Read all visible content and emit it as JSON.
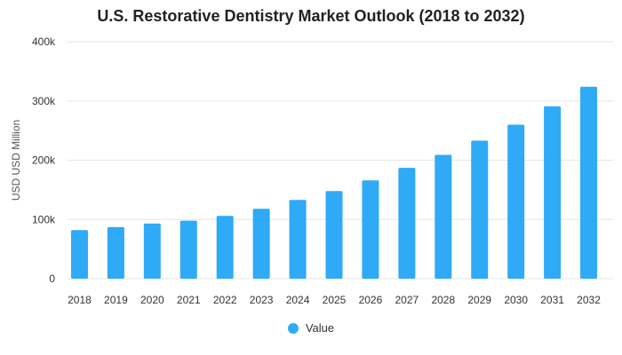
{
  "chart_data": {
    "type": "bar",
    "title": "U.S. Restorative Dentistry Market Outlook (2018 to 2032)",
    "xlabel": "",
    "ylabel": "USD USD Million",
    "categories": [
      "2018",
      "2019",
      "2020",
      "2021",
      "2022",
      "2023",
      "2024",
      "2025",
      "2026",
      "2027",
      "2028",
      "2029",
      "2030",
      "2031",
      "2032"
    ],
    "series": [
      {
        "name": "Value",
        "values": [
          82000,
          87000,
          93000,
          98000,
          106000,
          118000,
          133000,
          148000,
          166000,
          187000,
          209000,
          233000,
          260000,
          291000,
          324000
        ],
        "color": "#2eaaf7"
      }
    ],
    "ylim": [
      0,
      400000
    ],
    "yticks": [
      0,
      100000,
      200000,
      300000,
      400000
    ],
    "ytick_labels": [
      "0",
      "100k",
      "200k",
      "300k",
      "400k"
    ],
    "grid": true,
    "legend": "bottom-center"
  }
}
